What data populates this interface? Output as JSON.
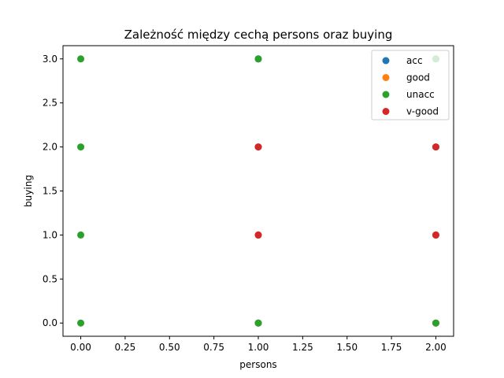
{
  "chart_data": {
    "type": "scatter",
    "title": "Zależność między cechą persons oraz buying",
    "xlabel": "persons",
    "ylabel": "buying",
    "xlim": [
      -0.1,
      2.1
    ],
    "ylim": [
      -0.15,
      3.15
    ],
    "xticks": [
      0.0,
      0.25,
      0.5,
      0.75,
      1.0,
      1.25,
      1.5,
      1.75,
      2.0
    ],
    "xtick_labels": [
      "0.00",
      "0.25",
      "0.50",
      "0.75",
      "1.00",
      "1.25",
      "1.50",
      "1.75",
      "2.00"
    ],
    "yticks": [
      0.0,
      0.5,
      1.0,
      1.5,
      2.0,
      2.5,
      3.0
    ],
    "ytick_labels": [
      "0.0",
      "0.5",
      "1.0",
      "1.5",
      "2.0",
      "2.5",
      "3.0"
    ],
    "grid": false,
    "legend_position": "top-right",
    "series": [
      {
        "name": "acc",
        "color": "#1f77b4",
        "points": [
          [
            1,
            0
          ],
          [
            1,
            1
          ],
          [
            1,
            2
          ],
          [
            1,
            3
          ],
          [
            2,
            0
          ],
          [
            2,
            1
          ],
          [
            2,
            2
          ],
          [
            2,
            3
          ]
        ]
      },
      {
        "name": "good",
        "color": "#ff7f0e",
        "points": [
          [
            1,
            0
          ],
          [
            1,
            1
          ],
          [
            2,
            0
          ],
          [
            2,
            1
          ]
        ]
      },
      {
        "name": "unacc",
        "color": "#2ca02c",
        "points": [
          [
            0,
            0
          ],
          [
            0,
            1
          ],
          [
            0,
            2
          ],
          [
            0,
            3
          ],
          [
            1,
            0
          ],
          [
            1,
            3
          ],
          [
            2,
            0
          ],
          [
            2,
            3
          ]
        ]
      },
      {
        "name": "v-good",
        "color": "#d62728",
        "points": [
          [
            1,
            1
          ],
          [
            1,
            2
          ],
          [
            2,
            1
          ],
          [
            2,
            2
          ]
        ]
      }
    ]
  }
}
